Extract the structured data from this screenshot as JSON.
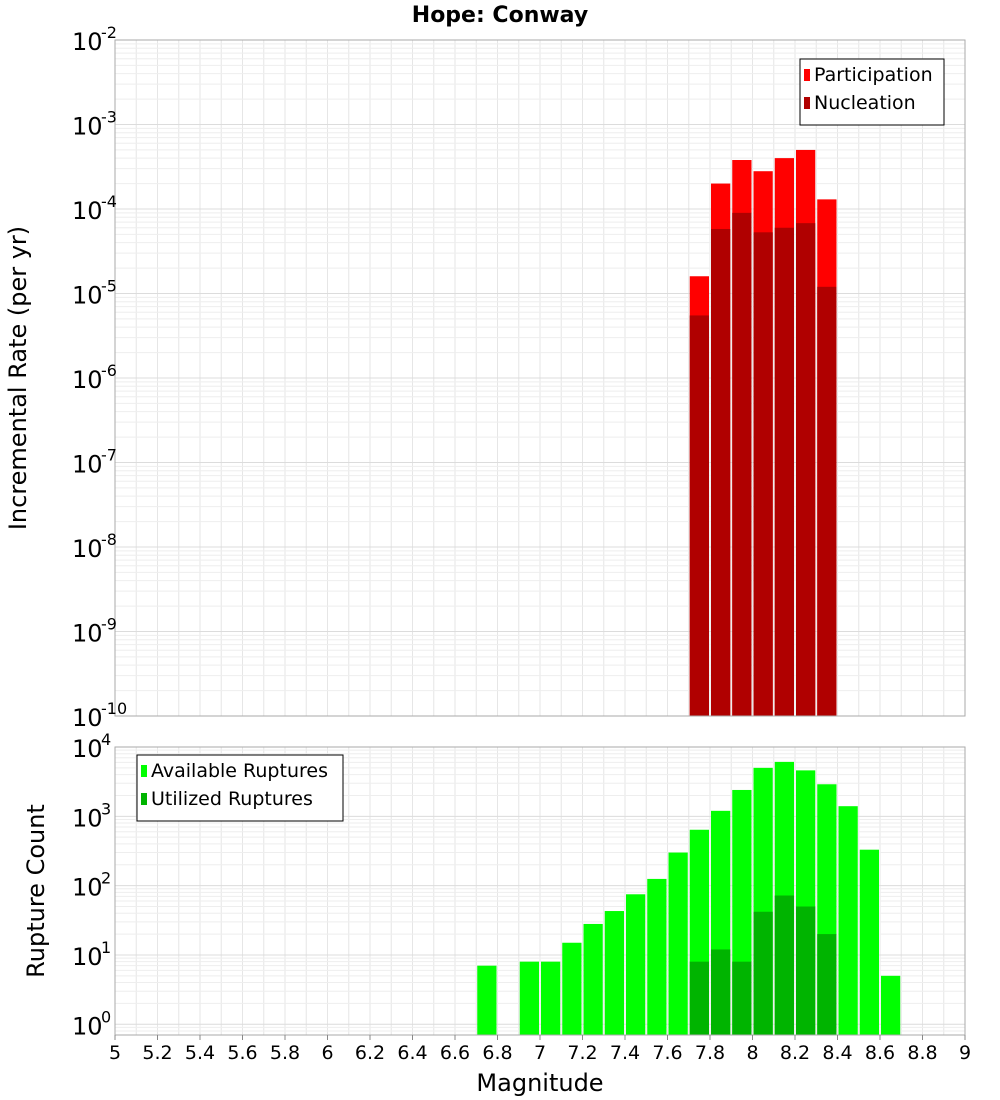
{
  "figure": {
    "title": "Hope: Conway"
  },
  "chart_data": [
    {
      "type": "bar",
      "panel": "top",
      "ylabel": "Incremental Rate (per yr)",
      "xlim": [
        5,
        9
      ],
      "ylog": true,
      "ylim": [
        1e-10,
        0.01
      ],
      "y_ticks_exp": [
        -10,
        -9,
        -8,
        -7,
        -6,
        -5,
        -4,
        -3,
        -2
      ],
      "bin_width": 0.1,
      "grid": true,
      "legend_position": "top-right",
      "series": [
        {
          "name": "Participation",
          "color": "#ff0000",
          "x": [
            7.75,
            7.85,
            7.95,
            8.05,
            8.15,
            8.25,
            8.35
          ],
          "values": [
            1.6e-05,
            0.0002,
            0.00038,
            0.00028,
            0.0004,
            0.0005,
            0.00013
          ]
        },
        {
          "name": "Nucleation",
          "color": "#b00000",
          "x": [
            7.75,
            7.85,
            7.95,
            8.05,
            8.15,
            8.25,
            8.35
          ],
          "values": [
            5.5e-06,
            5.8e-05,
            9e-05,
            5.3e-05,
            6e-05,
            6.8e-05,
            1.2e-05
          ]
        }
      ]
    },
    {
      "type": "bar",
      "panel": "bottom",
      "xlabel": "Magnitude",
      "ylabel": "Rupture Count",
      "xlim": [
        5,
        9
      ],
      "x_ticks": [
        "5",
        "5.2",
        "5.4",
        "5.6",
        "5.8",
        "6",
        "6.2",
        "6.4",
        "6.6",
        "6.8",
        "7",
        "7.2",
        "7.4",
        "7.6",
        "7.8",
        "8",
        "8.2",
        "8.4",
        "8.6",
        "8.8",
        "9"
      ],
      "ylog": true,
      "ylim": [
        0.7,
        10000
      ],
      "y_ticks_exp": [
        0,
        1,
        2,
        3,
        4
      ],
      "bin_width": 0.1,
      "grid": true,
      "legend_position": "top-left",
      "series": [
        {
          "name": "Available Ruptures",
          "color": "#00ff00",
          "x": [
            6.75,
            6.95,
            7.05,
            7.15,
            7.25,
            7.35,
            7.45,
            7.55,
            7.65,
            7.75,
            7.85,
            7.95,
            8.05,
            8.15,
            8.25,
            8.35,
            8.45,
            8.55,
            8.65
          ],
          "values": [
            7,
            8,
            8,
            15,
            28,
            43,
            75,
            125,
            300,
            640,
            1200,
            2400,
            5000,
            6100,
            4600,
            2900,
            1400,
            330,
            5
          ]
        },
        {
          "name": "Utilized Ruptures",
          "color": "#00b400",
          "x": [
            7.75,
            7.85,
            7.95,
            8.05,
            8.15,
            8.25,
            8.35
          ],
          "values": [
            8,
            12,
            8,
            42,
            72,
            50,
            20
          ]
        }
      ]
    }
  ]
}
